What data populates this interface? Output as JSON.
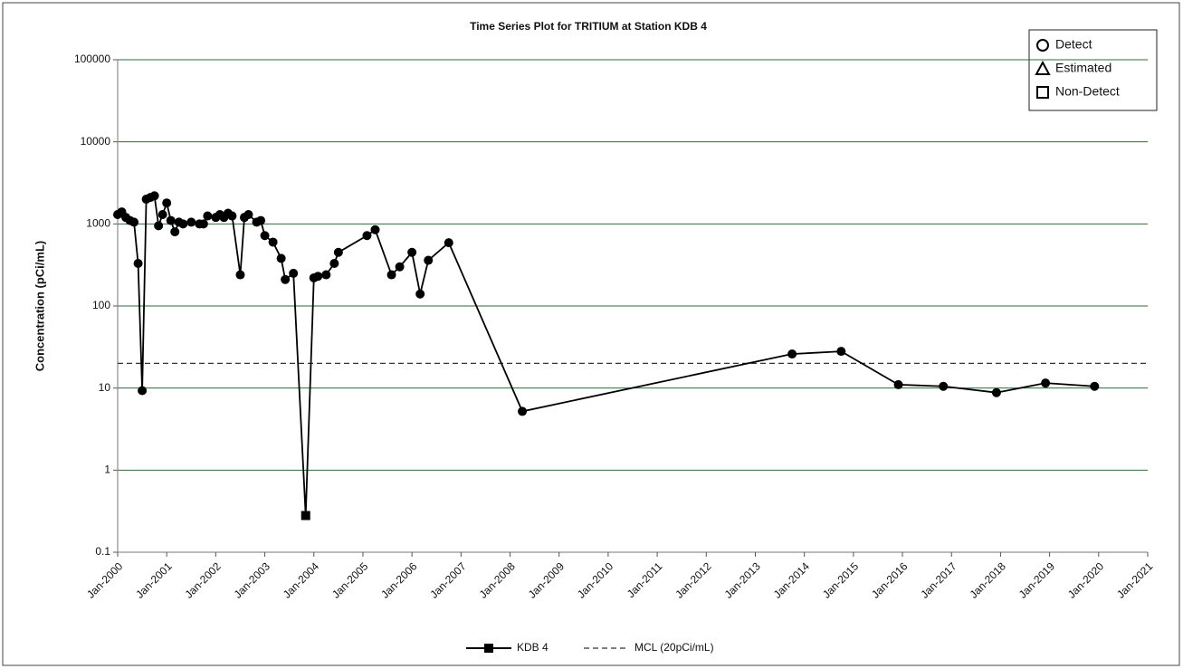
{
  "chart_data": {
    "type": "line",
    "title": "Time Series Plot for TRITIUM at Station KDB  4",
    "y_label": "Concentration (pCi/mL)",
    "y_log": true,
    "grid": true,
    "ylim": [
      0.1,
      100000
    ],
    "yticks": [
      0.1,
      1,
      10,
      100,
      1000,
      10000,
      100000
    ],
    "xlim": [
      "2000-01",
      "2021-01"
    ],
    "xticks": [
      {
        "value": "2000-01",
        "label": "Jan-2000"
      },
      {
        "value": "2001-01",
        "label": "Jan-2001"
      },
      {
        "value": "2002-01",
        "label": "Jan-2002"
      },
      {
        "value": "2003-01",
        "label": "Jan-2003"
      },
      {
        "value": "2004-01",
        "label": "Jan-2004"
      },
      {
        "value": "2005-01",
        "label": "Jan-2005"
      },
      {
        "value": "2006-01",
        "label": "Jan-2006"
      },
      {
        "value": "2007-01",
        "label": "Jan-2007"
      },
      {
        "value": "2008-01",
        "label": "Jan-2008"
      },
      {
        "value": "2009-01",
        "label": "Jan-2009"
      },
      {
        "value": "2010-01",
        "label": "Jan-2010"
      },
      {
        "value": "2011-01",
        "label": "Jan-2011"
      },
      {
        "value": "2012-01",
        "label": "Jan-2012"
      },
      {
        "value": "2013-01",
        "label": "Jan-2013"
      },
      {
        "value": "2014-01",
        "label": "Jan-2014"
      },
      {
        "value": "2015-01",
        "label": "Jan-2015"
      },
      {
        "value": "2016-01",
        "label": "Jan-2016"
      },
      {
        "value": "2017-01",
        "label": "Jan-2017"
      },
      {
        "value": "2018-01",
        "label": "Jan-2018"
      },
      {
        "value": "2019-01",
        "label": "Jan-2019"
      },
      {
        "value": "2020-01",
        "label": "Jan-2020"
      },
      {
        "value": "2021-01",
        "label": "Jan-2021"
      }
    ],
    "series": [
      {
        "name": "KDB  4",
        "color": "#000000",
        "x": [
          "2000-01",
          "2000-02",
          "2000-03",
          "2000-04",
          "2000-05",
          "2000-06",
          "2000-07",
          "2000-08",
          "2000-09",
          "2000-10",
          "2000-11",
          "2000-12",
          "2001-01",
          "2001-02",
          "2001-03",
          "2001-04",
          "2001-05",
          "2001-07",
          "2001-09",
          "2001-10",
          "2001-11",
          "2002-01",
          "2002-02",
          "2002-03",
          "2002-04",
          "2002-05",
          "2002-07",
          "2002-08",
          "2002-09",
          "2002-11",
          "2002-12",
          "2003-01",
          "2003-03",
          "2003-05",
          "2003-06",
          "2003-08",
          "2003-11",
          "2004-01",
          "2004-02",
          "2004-04",
          "2004-06",
          "2004-07",
          "2005-02",
          "2005-04",
          "2005-08",
          "2005-10",
          "2006-01",
          "2006-03",
          "2006-05",
          "2006-10",
          "2008-04",
          "2013-10",
          "2014-10",
          "2015-12",
          "2016-11",
          "2017-12",
          "2018-12",
          "2019-12"
        ],
        "values": [
          1300,
          1400,
          1200,
          1100,
          1050,
          330,
          9.3,
          2000,
          2100,
          2200,
          950,
          1300,
          1800,
          1100,
          800,
          1050,
          1000,
          1050,
          1000,
          1000,
          1250,
          1200,
          1300,
          1200,
          1350,
          1250,
          240,
          1200,
          1300,
          1050,
          1100,
          720,
          600,
          380,
          210,
          250,
          0.28,
          220,
          230,
          240,
          330,
          450,
          720,
          850,
          240,
          300,
          450,
          140,
          360,
          590,
          5.2,
          26,
          28,
          11,
          10.5,
          8.8,
          11.5,
          10.5
        ],
        "markers": [
          "circle",
          "circle",
          "circle",
          "circle",
          "circle",
          "circle",
          "circle",
          "circle",
          "circle",
          "circle",
          "circle",
          "circle",
          "circle",
          "circle",
          "circle",
          "circle",
          "circle",
          "circle",
          "circle",
          "circle",
          "circle",
          "circle",
          "circle",
          "circle",
          "circle",
          "circle",
          "circle",
          "circle",
          "circle",
          "circle",
          "circle",
          "circle",
          "circle",
          "circle",
          "circle",
          "circle",
          "square",
          "circle",
          "circle",
          "circle",
          "circle",
          "circle",
          "circle",
          "circle",
          "circle",
          "circle",
          "circle",
          "circle",
          "circle",
          "circle",
          "circle",
          "circle",
          "circle",
          "circle",
          "circle",
          "circle",
          "circle",
          "circle"
        ]
      }
    ],
    "reference_lines": [
      {
        "name": "MCL (20pCi/mL)",
        "value": 20,
        "color": "#333333"
      }
    ],
    "symbol_key": [
      {
        "shape": "circle",
        "label": "Detect"
      },
      {
        "shape": "triangle",
        "label": "Estimated"
      },
      {
        "shape": "square",
        "label": "Non-Detect"
      }
    ]
  }
}
